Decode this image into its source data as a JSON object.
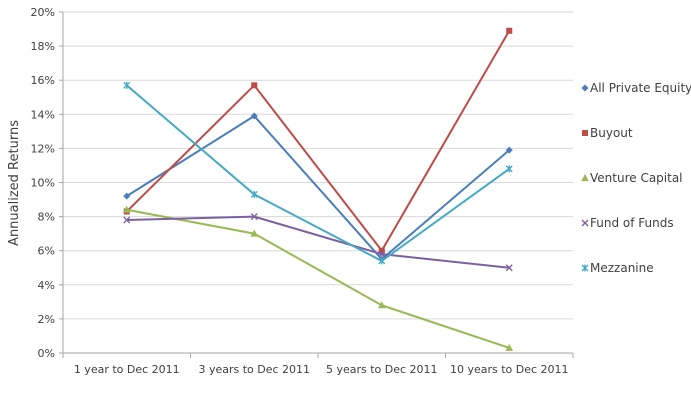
{
  "chart_data": {
    "type": "line",
    "title": "",
    "xlabel": "",
    "ylabel": "Annualized Returns",
    "categories": [
      "1 year to Dec 2011",
      "3 years to Dec 2011",
      "5 years to Dec 2011",
      "10 years to Dec 2011"
    ],
    "y_ticks": [
      "0%",
      "2%",
      "4%",
      "6%",
      "8%",
      "10%",
      "12%",
      "14%",
      "16%",
      "18%",
      "20%"
    ],
    "ylim": [
      0,
      20
    ],
    "grid": "horizontal",
    "legend_position": "right",
    "series": [
      {
        "name": "All Private Equity",
        "color": "#4a7ebb",
        "marker": "diamond",
        "values": [
          9.2,
          13.9,
          5.5,
          11.9
        ]
      },
      {
        "name": "Buyout",
        "color": "#be4b48",
        "marker": "square",
        "values": [
          8.3,
          15.7,
          6.0,
          18.9
        ]
      },
      {
        "name": "Venture Capital",
        "color": "#98b954",
        "marker": "triangle",
        "values": [
          8.4,
          7.0,
          2.8,
          0.3
        ]
      },
      {
        "name": "Fund of Funds",
        "color": "#7d60a0",
        "marker": "x",
        "values": [
          7.8,
          8.0,
          5.8,
          5.0
        ]
      },
      {
        "name": "Mezzanine",
        "color": "#46aac5",
        "marker": "star",
        "values": [
          15.7,
          9.3,
          5.4,
          10.8
        ]
      }
    ]
  }
}
